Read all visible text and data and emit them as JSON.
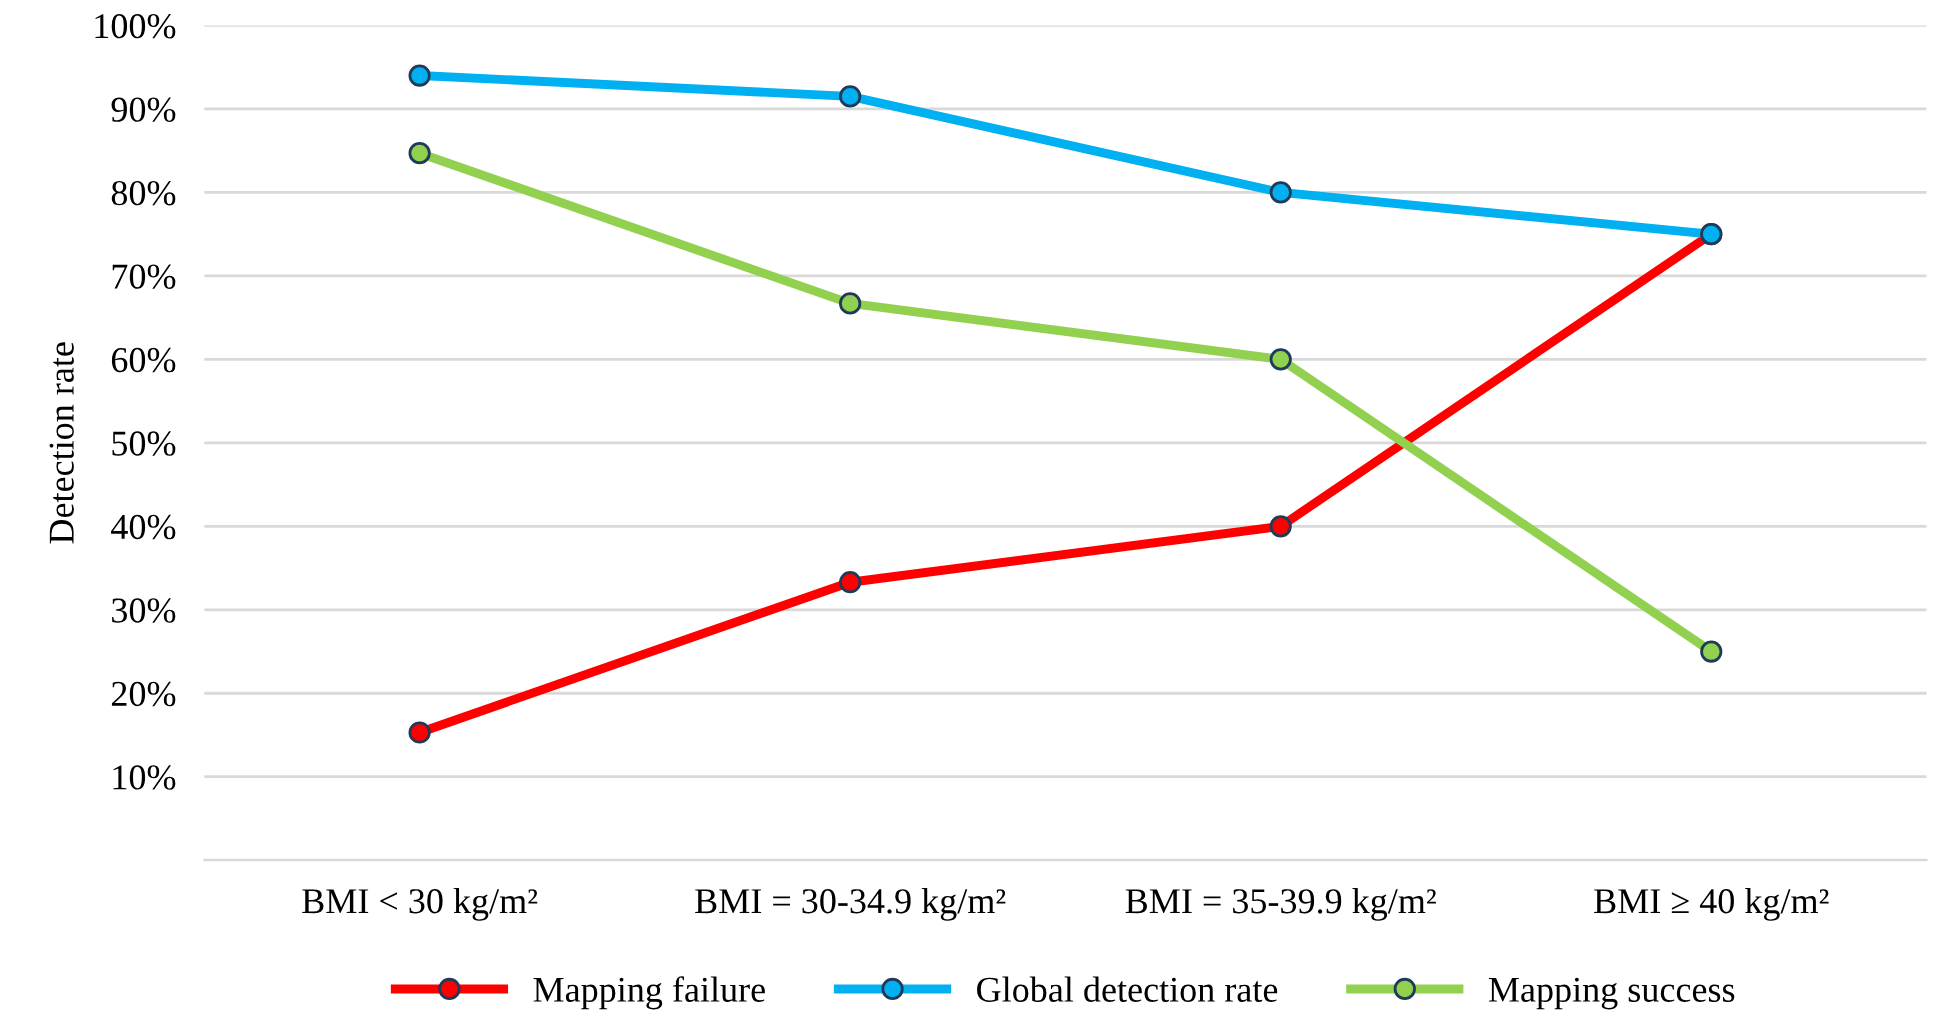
{
  "chart_data": {
    "type": "line",
    "ylabel": "Detection rate",
    "categories": [
      "BMI < 30 kg/m²",
      "BMI = 30-34.9 kg/m²",
      "BMI = 35-39.9 kg/m²",
      "BMI ≥ 40 kg/m²"
    ],
    "series": [
      {
        "name": "Mapping failure",
        "color": "#ff0000",
        "values": [
          15.3,
          33.3,
          40,
          75
        ]
      },
      {
        "name": "Global detection rate",
        "color": "#00b0f0",
        "values": [
          94,
          91.5,
          80,
          75
        ]
      },
      {
        "name": "Mapping success",
        "color": "#92d050",
        "values": [
          84.7,
          66.7,
          60,
          25
        ]
      }
    ],
    "ylim": [
      0,
      100
    ],
    "yticks": [
      {
        "value": 0,
        "label": null
      },
      {
        "value": 10,
        "label": "10%"
      },
      {
        "value": 20,
        "label": "20%"
      },
      {
        "value": 30,
        "label": "30%"
      },
      {
        "value": 40,
        "label": "40%"
      },
      {
        "value": 50,
        "label": "50%"
      },
      {
        "value": 60,
        "label": "60%"
      },
      {
        "value": 70,
        "label": "70%"
      },
      {
        "value": 80,
        "label": "80%"
      },
      {
        "value": 90,
        "label": "90%"
      },
      {
        "value": 100,
        "label": "100%"
      }
    ],
    "grid": "y",
    "legend": "bottom",
    "marker": "circle",
    "line_style": "solid"
  }
}
